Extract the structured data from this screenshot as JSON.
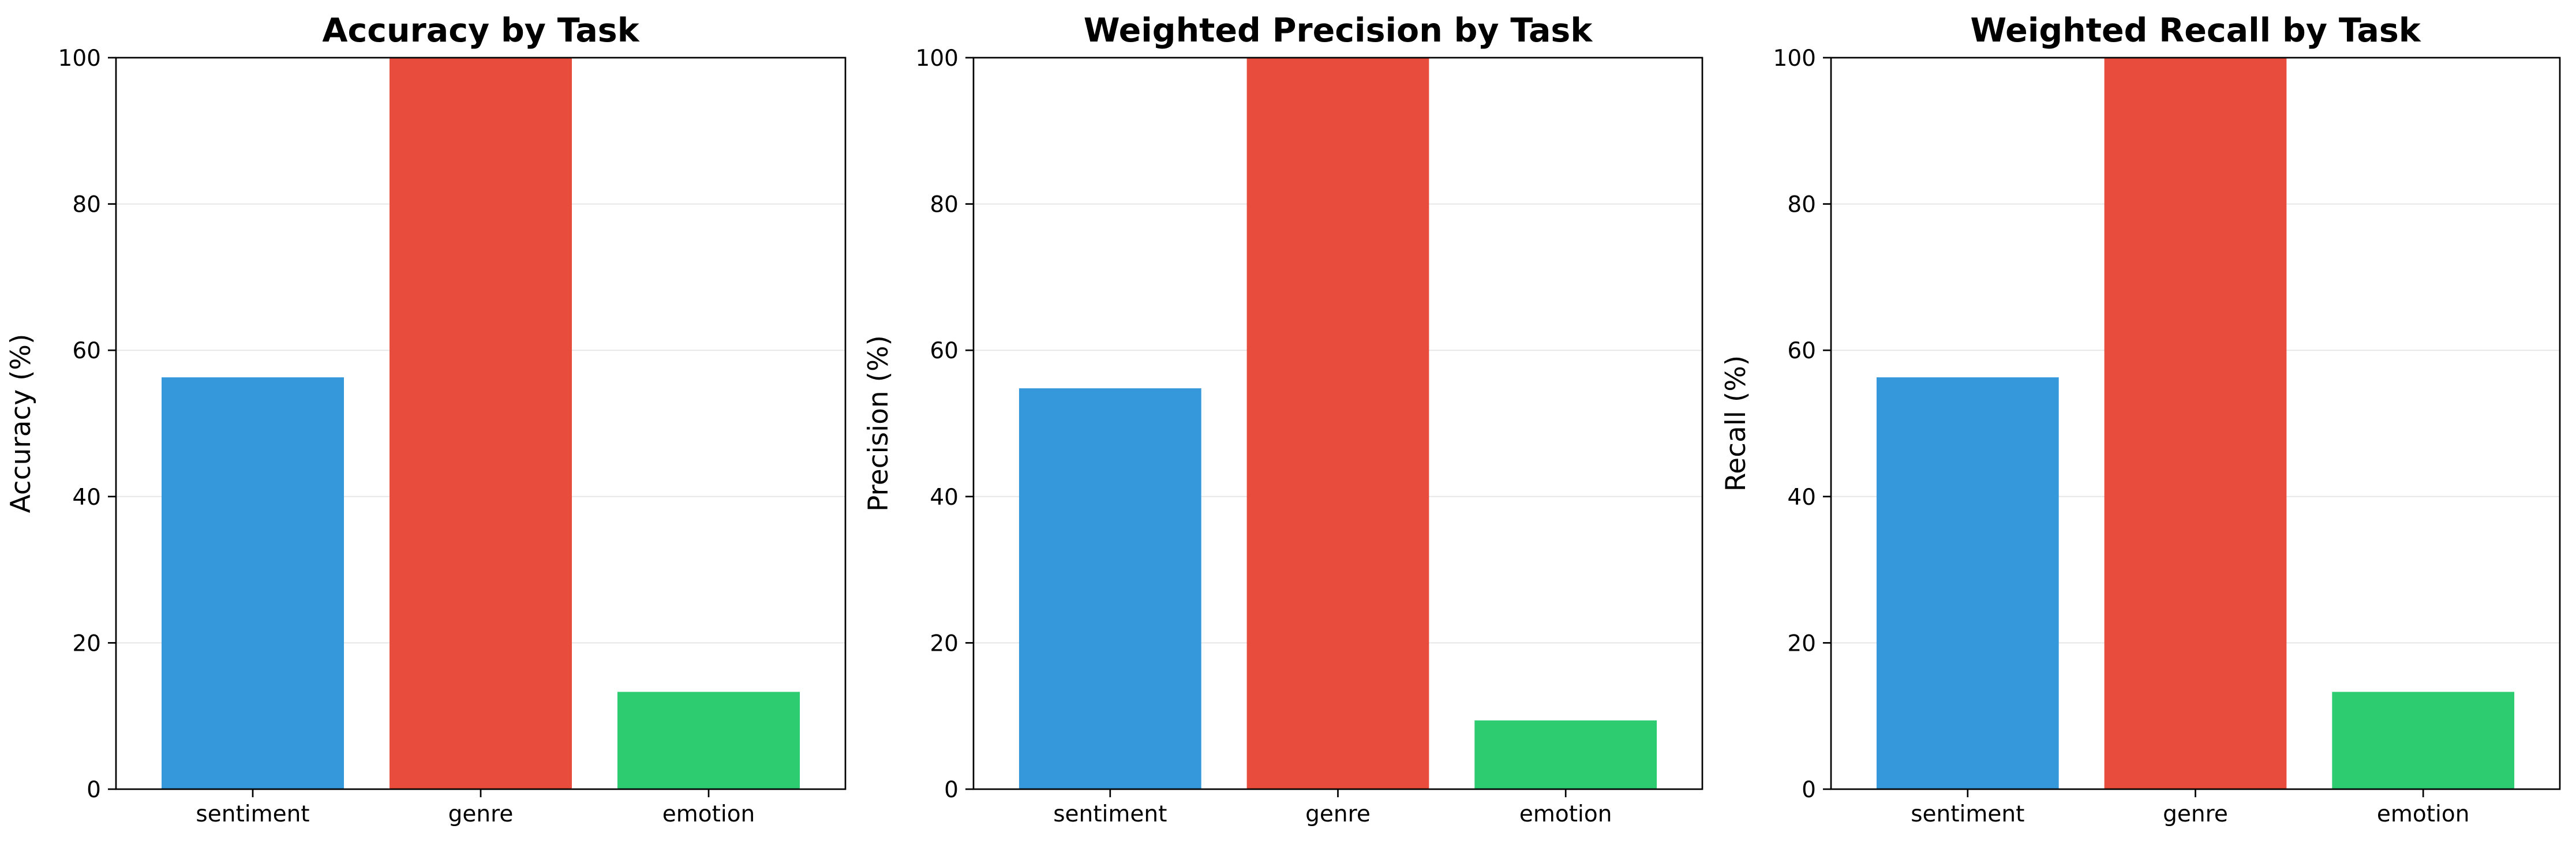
{
  "chart_data": [
    {
      "type": "bar",
      "title": "Accuracy by Task",
      "xlabel": "",
      "ylabel": "Accuracy (%)",
      "categories": [
        "sentiment",
        "genre",
        "emotion"
      ],
      "values": [
        56.3,
        100.0,
        13.3
      ],
      "colors": [
        "#3498db",
        "#e74c3c",
        "#2ecc71"
      ],
      "ylim": [
        0,
        100
      ],
      "yticks": [
        0,
        20,
        40,
        60,
        80,
        100
      ],
      "grid": "y"
    },
    {
      "type": "bar",
      "title": "Weighted Precision by Task",
      "xlabel": "",
      "ylabel": "Precision (%)",
      "categories": [
        "sentiment",
        "genre",
        "emotion"
      ],
      "values": [
        54.8,
        100.0,
        9.4
      ],
      "colors": [
        "#3498db",
        "#e74c3c",
        "#2ecc71"
      ],
      "ylim": [
        0,
        100
      ],
      "yticks": [
        0,
        20,
        40,
        60,
        80,
        100
      ],
      "grid": "y"
    },
    {
      "type": "bar",
      "title": "Weighted Recall by Task",
      "xlabel": "",
      "ylabel": "Recall (%)",
      "categories": [
        "sentiment",
        "genre",
        "emotion"
      ],
      "values": [
        56.3,
        100.0,
        13.3
      ],
      "colors": [
        "#3498db",
        "#e74c3c",
        "#2ecc71"
      ],
      "ylim": [
        0,
        100
      ],
      "yticks": [
        0,
        20,
        40,
        60,
        80,
        100
      ],
      "grid": "y"
    }
  ]
}
